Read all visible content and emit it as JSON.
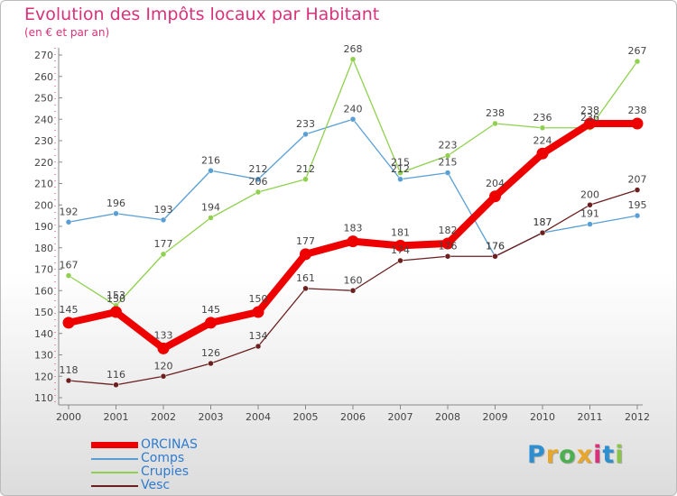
{
  "header": {
    "title": "Evolution des Impôts locaux par Habitant",
    "subtitle": "(en € et par an)"
  },
  "logo": {
    "letters": [
      "P",
      "r",
      "o",
      "x",
      "i",
      "t",
      "i"
    ],
    "colors": [
      "#2e8fd0",
      "#e8a62a",
      "#4caf50",
      "#e8a62a",
      "#d9327a",
      "#2e8fd0",
      "#8bc34a"
    ]
  },
  "chart_data": {
    "type": "line",
    "title": "Evolution des Impôts locaux par Habitant",
    "subtitle": "(en € et par an)",
    "xlabel": "",
    "ylabel": "",
    "x": [
      "2000",
      "2001",
      "2002",
      "2003",
      "2004",
      "2005",
      "2006",
      "2007",
      "2008",
      "2009",
      "2010",
      "2011",
      "2012"
    ],
    "ylim": [
      110,
      270
    ],
    "yticks": [
      110,
      120,
      130,
      140,
      150,
      160,
      170,
      180,
      190,
      200,
      210,
      220,
      230,
      240,
      250,
      260,
      270
    ],
    "grid": false,
    "legend": "bottom-left",
    "series": [
      {
        "name": "ORCINAS",
        "color": "#ee0000",
        "values": [
          145,
          150,
          133,
          145,
          150,
          177,
          183,
          181,
          182,
          204,
          224,
          238,
          238
        ]
      },
      {
        "name": "Comps",
        "color": "#5a9fd4",
        "values": [
          192,
          196,
          193,
          216,
          212,
          233,
          240,
          212,
          215,
          176,
          187,
          191,
          195
        ]
      },
      {
        "name": "Crupies",
        "color": "#8fd14f",
        "values": [
          167,
          153,
          177,
          194,
          206,
          212,
          268,
          215,
          223,
          238,
          236,
          236,
          267
        ]
      },
      {
        "name": "Vesc",
        "color": "#6b1f1f",
        "values": [
          118,
          116,
          120,
          126,
          134,
          161,
          160,
          174,
          176,
          176,
          187,
          200,
          207
        ]
      }
    ]
  }
}
